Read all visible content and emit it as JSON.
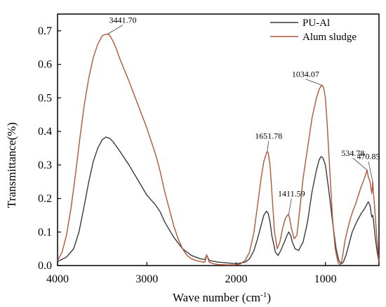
{
  "chart_data": {
    "type": "line",
    "title": "",
    "xlabel": "Wave number",
    "xlabel_unit_prefix": "cm",
    "xlabel_unit_exp": "-1",
    "ylabel": "Transmittance(%)",
    "xlim": [
      4000,
      400
    ],
    "ylim": [
      0,
      0.75
    ],
    "x_reversed": true,
    "grid": false,
    "legend_position": "top-right",
    "x_ticks": [
      {
        "value": 4000,
        "label": "4000"
      },
      {
        "value": 3000,
        "label": "3000"
      },
      {
        "value": 2000,
        "label": "2000"
      },
      {
        "value": 1000,
        "label": "1000"
      }
    ],
    "y_ticks": [
      {
        "value": 0,
        "label": "0.0"
      },
      {
        "value": 0.1,
        "label": "0.1"
      },
      {
        "value": 0.2,
        "label": "0.2"
      },
      {
        "value": 0.3,
        "label": "0.3"
      },
      {
        "value": 0.4,
        "label": "0.4"
      },
      {
        "value": 0.5,
        "label": "0.5"
      },
      {
        "value": 0.6,
        "label": "0.6"
      },
      {
        "value": 0.7,
        "label": "0.7"
      }
    ],
    "series": [
      {
        "name": "PU-Al",
        "color": "#3a3a3a",
        "x": [
          4000,
          3900,
          3820,
          3760,
          3700,
          3650,
          3600,
          3550,
          3500,
          3460,
          3420,
          3380,
          3300,
          3200,
          3100,
          3000,
          2950,
          2900,
          2850,
          2800,
          2700,
          2600,
          2500,
          2400,
          2350,
          2330,
          2300,
          2200,
          2100,
          2000,
          1900,
          1850,
          1800,
          1760,
          1720,
          1690,
          1660,
          1640,
          1620,
          1600,
          1560,
          1530,
          1500,
          1460,
          1430,
          1410,
          1390,
          1370,
          1340,
          1300,
          1250,
          1200,
          1150,
          1100,
          1070,
          1050,
          1030,
          1000,
          960,
          920,
          880,
          850,
          820,
          800,
          770,
          740,
          700,
          650,
          600,
          560,
          540,
          520,
          500,
          490,
          480,
          470,
          460,
          440,
          420,
          400
        ],
        "y": [
          0.012,
          0.025,
          0.05,
          0.1,
          0.18,
          0.25,
          0.31,
          0.35,
          0.375,
          0.383,
          0.38,
          0.37,
          0.34,
          0.3,
          0.255,
          0.21,
          0.195,
          0.18,
          0.16,
          0.13,
          0.085,
          0.05,
          0.03,
          0.02,
          0.018,
          0.03,
          0.015,
          0.01,
          0.008,
          0.005,
          0.01,
          0.02,
          0.045,
          0.08,
          0.12,
          0.15,
          0.162,
          0.155,
          0.13,
          0.09,
          0.04,
          0.03,
          0.045,
          0.07,
          0.09,
          0.1,
          0.09,
          0.07,
          0.05,
          0.045,
          0.07,
          0.13,
          0.22,
          0.285,
          0.315,
          0.325,
          0.322,
          0.3,
          0.22,
          0.13,
          0.05,
          0.015,
          0.005,
          0.01,
          0.03,
          0.06,
          0.1,
          0.13,
          0.155,
          0.17,
          0.18,
          0.19,
          0.18,
          0.16,
          0.145,
          0.15,
          0.13,
          0.08,
          0.04,
          0.01
        ]
      },
      {
        "name": "Alum sludge",
        "color": "#b5553a",
        "x": [
          4000,
          3950,
          3900,
          3850,
          3800,
          3750,
          3700,
          3650,
          3600,
          3550,
          3500,
          3460,
          3441,
          3420,
          3380,
          3340,
          3300,
          3200,
          3100,
          3000,
          2950,
          2900,
          2850,
          2800,
          2750,
          2700,
          2650,
          2600,
          2550,
          2500,
          2450,
          2400,
          2350,
          2330,
          2300,
          2250,
          2200,
          2100,
          2000,
          1950,
          1900,
          1850,
          1800,
          1760,
          1720,
          1690,
          1660,
          1651,
          1640,
          1620,
          1600,
          1570,
          1540,
          1510,
          1480,
          1450,
          1420,
          1411,
          1400,
          1380,
          1350,
          1320,
          1290,
          1250,
          1200,
          1150,
          1100,
          1070,
          1050,
          1034,
          1020,
          1000,
          980,
          950,
          920,
          890,
          860,
          840,
          820,
          800,
          780,
          750,
          720,
          690,
          660,
          630,
          600,
          570,
          550,
          534,
          520,
          500,
          490,
          480,
          470,
          460,
          450,
          440,
          420,
          400
        ],
        "y": [
          0.015,
          0.04,
          0.09,
          0.17,
          0.27,
          0.38,
          0.48,
          0.56,
          0.62,
          0.66,
          0.685,
          0.69,
          0.69,
          0.688,
          0.67,
          0.645,
          0.615,
          0.55,
          0.48,
          0.41,
          0.37,
          0.33,
          0.28,
          0.22,
          0.17,
          0.12,
          0.08,
          0.05,
          0.03,
          0.02,
          0.015,
          0.012,
          0.01,
          0.032,
          0.01,
          0.005,
          0.003,
          0.002,
          0.002,
          0.005,
          0.015,
          0.04,
          0.1,
          0.18,
          0.26,
          0.31,
          0.335,
          0.34,
          0.335,
          0.3,
          0.22,
          0.1,
          0.05,
          0.07,
          0.11,
          0.14,
          0.152,
          0.15,
          0.14,
          0.11,
          0.08,
          0.09,
          0.16,
          0.26,
          0.35,
          0.44,
          0.5,
          0.525,
          0.535,
          0.537,
          0.53,
          0.5,
          0.42,
          0.28,
          0.14,
          0.05,
          0.01,
          0.002,
          0.01,
          0.04,
          0.075,
          0.11,
          0.14,
          0.165,
          0.185,
          0.21,
          0.235,
          0.255,
          0.27,
          0.285,
          0.265,
          0.25,
          0.23,
          0.215,
          0.25,
          0.21,
          0.18,
          0.14,
          0.07,
          0.01
        ]
      }
    ],
    "annotations": [
      {
        "text": "3441.70",
        "x": 3441.7,
        "y": 0.69
      },
      {
        "text": "1651.78",
        "x": 1651.78,
        "y": 0.34
      },
      {
        "text": "1411.59",
        "x": 1411.59,
        "y": 0.152
      },
      {
        "text": "1034.07",
        "x": 1034.07,
        "y": 0.537
      },
      {
        "text": "534.78",
        "x": 534.78,
        "y": 0.285
      },
      {
        "text": "470.85",
        "x": 470.85,
        "y": 0.25
      }
    ]
  }
}
